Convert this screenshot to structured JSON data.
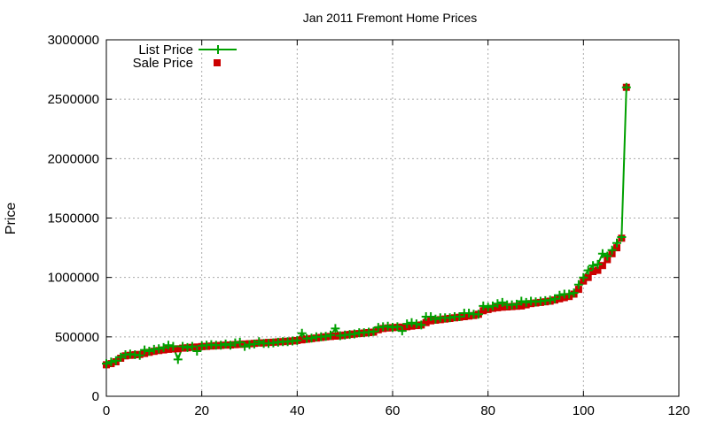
{
  "chart_data": {
    "type": "line",
    "title": "Jan 2011 Fremont Home Prices",
    "xlabel": "",
    "ylabel": "Price",
    "xlim": [
      0,
      120
    ],
    "ylim": [
      0,
      3000000
    ],
    "xticks": [
      0,
      20,
      40,
      60,
      80,
      100,
      120
    ],
    "yticks": [
      0,
      500000,
      1000000,
      1500000,
      2000000,
      2500000,
      3000000
    ],
    "grid": true,
    "legend_position": "top-left",
    "colors": {
      "list": "#00a000",
      "sale": "#cc0000"
    },
    "series": [
      {
        "name": "List Price",
        "style": "line-plus",
        "x": [
          0,
          1,
          2,
          3,
          4,
          5,
          6,
          7,
          8,
          9,
          10,
          11,
          12,
          13,
          14,
          15,
          16,
          17,
          18,
          19,
          20,
          21,
          22,
          23,
          24,
          25,
          26,
          27,
          28,
          29,
          30,
          31,
          32,
          33,
          34,
          35,
          36,
          37,
          38,
          39,
          40,
          41,
          42,
          43,
          44,
          45,
          46,
          47,
          48,
          49,
          50,
          51,
          52,
          53,
          54,
          55,
          56,
          57,
          58,
          59,
          60,
          61,
          62,
          63,
          64,
          65,
          66,
          67,
          68,
          69,
          70,
          71,
          72,
          73,
          74,
          75,
          76,
          77,
          78,
          79,
          80,
          81,
          82,
          83,
          84,
          85,
          86,
          87,
          88,
          89,
          90,
          91,
          92,
          93,
          94,
          95,
          96,
          97,
          98,
          99,
          100,
          101,
          102,
          103,
          104,
          105,
          106,
          107,
          108,
          109
        ],
        "values": [
          275000,
          288000,
          300000,
          330000,
          350000,
          355000,
          350000,
          345000,
          390000,
          380000,
          395000,
          400000,
          410000,
          430000,
          420000,
          310000,
          420000,
          410000,
          420000,
          380000,
          425000,
          430000,
          435000,
          430000,
          430000,
          440000,
          430000,
          450000,
          455000,
          420000,
          435000,
          440000,
          460000,
          445000,
          445000,
          450000,
          455000,
          460000,
          460000,
          465000,
          470000,
          530000,
          485000,
          490000,
          500000,
          500000,
          505000,
          515000,
          570000,
          510000,
          515000,
          520000,
          525000,
          535000,
          535000,
          540000,
          545000,
          580000,
          585000,
          590000,
          580000,
          585000,
          550000,
          610000,
          620000,
          610000,
          600000,
          670000,
          670000,
          650000,
          660000,
          660000,
          660000,
          670000,
          670000,
          700000,
          700000,
          690000,
          690000,
          760000,
          750000,
          760000,
          780000,
          790000,
          770000,
          770000,
          775000,
          800000,
          790000,
          800000,
          795000,
          800000,
          805000,
          810000,
          820000,
          850000,
          860000,
          860000,
          870000,
          940000,
          1000000,
          1060000,
          1100000,
          1110000,
          1200000,
          1180000,
          1230000,
          1290000,
          1340000,
          2600000
        ]
      },
      {
        "name": "Sale Price",
        "style": "squares",
        "x": [
          0,
          1,
          2,
          3,
          4,
          5,
          6,
          7,
          8,
          9,
          10,
          11,
          12,
          13,
          14,
          15,
          16,
          17,
          18,
          19,
          20,
          21,
          22,
          23,
          24,
          25,
          26,
          27,
          28,
          29,
          30,
          31,
          32,
          33,
          34,
          35,
          36,
          37,
          38,
          39,
          40,
          41,
          42,
          43,
          44,
          45,
          46,
          47,
          48,
          49,
          50,
          51,
          52,
          53,
          54,
          55,
          56,
          57,
          58,
          59,
          60,
          61,
          62,
          63,
          64,
          65,
          66,
          67,
          68,
          69,
          70,
          71,
          72,
          73,
          74,
          75,
          76,
          77,
          78,
          79,
          80,
          81,
          82,
          83,
          84,
          85,
          86,
          87,
          88,
          89,
          90,
          91,
          92,
          93,
          94,
          95,
          96,
          97,
          98,
          99,
          100,
          101,
          102,
          103,
          104,
          105,
          106,
          107,
          108,
          109
        ],
        "values": [
          265000,
          275000,
          290000,
          320000,
          340000,
          345000,
          350000,
          352000,
          360000,
          370000,
          378000,
          385000,
          390000,
          395000,
          398000,
          400000,
          405000,
          408000,
          412000,
          415000,
          418000,
          420000,
          423000,
          426000,
          428000,
          430000,
          432000,
          435000,
          437000,
          440000,
          442000,
          445000,
          448000,
          450000,
          453000,
          455000,
          458000,
          460000,
          463000,
          466000,
          470000,
          475000,
          480000,
          485000,
          490000,
          495000,
          500000,
          503000,
          506000,
          510000,
          515000,
          520000,
          524000,
          528000,
          532000,
          536000,
          540000,
          560000,
          570000,
          575000,
          578000,
          580000,
          582000,
          585000,
          590000,
          595000,
          600000,
          620000,
          635000,
          640000,
          645000,
          650000,
          655000,
          660000,
          665000,
          670000,
          675000,
          680000,
          690000,
          720000,
          730000,
          740000,
          745000,
          750000,
          752000,
          755000,
          758000,
          760000,
          770000,
          780000,
          785000,
          790000,
          795000,
          800000,
          810000,
          820000,
          830000,
          840000,
          860000,
          900000,
          970000,
          1000000,
          1050000,
          1060000,
          1100000,
          1150000,
          1200000,
          1250000,
          1330000,
          2600000
        ]
      }
    ]
  }
}
